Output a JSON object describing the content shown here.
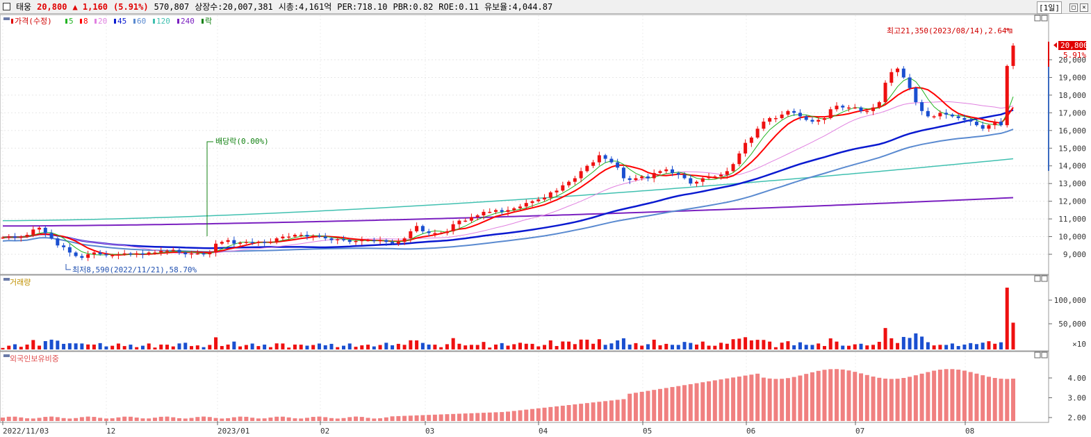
{
  "header": {
    "stock_name": "태웅",
    "price": "20,800",
    "change": "▲ 1,160",
    "change_pct": "(5.91%)",
    "volume": "570,807",
    "listed_shares": "상장수:20,007,381",
    "market_cap": "시총:4,161억",
    "per": "PER:718.10",
    "pbr": "PBR:0.82",
    "roe": "ROE:0.11",
    "retention": "유보율:4,044.87",
    "period": "[1일]"
  },
  "price_panel": {
    "legend_price": "가격(수정)",
    "legend_ma": [
      {
        "label": "5",
        "color": "#22b322"
      },
      {
        "label": "8",
        "color": "#ff0000"
      },
      {
        "label": "20",
        "color": "#e080e0"
      },
      {
        "label": "45",
        "color": "#0a1ad0"
      },
      {
        "label": "60",
        "color": "#5a8ad0"
      },
      {
        "label": "120",
        "color": "#40c0b0"
      },
      {
        "label": "240",
        "color": "#7a20c0"
      }
    ],
    "legend_extra": "락",
    "y_ticks": [
      "20,000",
      "19,000",
      "18,000",
      "17,000",
      "16,000",
      "15,000",
      "14,000",
      "13,000",
      "12,000",
      "11,000",
      "10,000",
      "9,000"
    ],
    "current_price_tag": "20,800",
    "current_pct_tag": "5.91%",
    "high_annotation": "최고21,350(2023/08/14),2.64%",
    "low_annotation": "최저8,590(2022/11/21),58.70%",
    "dividend_annotation": "배당락(0.00%)"
  },
  "volume_panel": {
    "title": "거래량",
    "y_ticks": [
      "100,000",
      "50,000"
    ],
    "unit": "×10"
  },
  "foreign_panel": {
    "title": "외국인보유비중",
    "y_ticks": [
      "4.00",
      "3.00",
      "2.00"
    ]
  },
  "x_axis": {
    "labels": [
      "2022/11/03",
      "12",
      "2023/01",
      "02",
      "03",
      "04",
      "05",
      "06",
      "07",
      "08"
    ]
  },
  "chart_data": {
    "type": "candlestick",
    "x_range": [
      "2022-11-03",
      "2023-08-16"
    ],
    "y_range": [
      8300,
      21600
    ],
    "close_series": [
      9950,
      10000,
      9950,
      10000,
      10100,
      10400,
      10500,
      10200,
      9900,
      9500,
      9400,
      9100,
      8900,
      8800,
      9000,
      9100,
      9000,
      8950,
      8950,
      9000,
      9050,
      9000,
      9050,
      9000,
      9100,
      9100,
      9200,
      9200,
      9250,
      9100,
      9000,
      9050,
      9050,
      9000,
      9100,
      9600,
      9700,
      9800,
      9600,
      9650,
      9700,
      9650,
      9700,
      9650,
      9700,
      9900,
      10000,
      10000,
      10100,
      10100,
      10000,
      10050,
      10000,
      9900,
      9800,
      9850,
      9800,
      9700,
      9750,
      9800,
      9800,
      9750,
      9800,
      9700,
      9600,
      9700,
      9900,
      10300,
      10600,
      10300,
      10200,
      10200,
      10200,
      10300,
      10700,
      10900,
      10900,
      11100,
      11200,
      11400,
      11400,
      11500,
      11400,
      11500,
      11600,
      11700,
      11900,
      12000,
      12100,
      12200,
      12500,
      12600,
      12900,
      13100,
      13300,
      13700,
      14000,
      14200,
      14600,
      14400,
      14200,
      13900,
      13300,
      13200,
      13300,
      13400,
      13300,
      13600,
      13700,
      13800,
      13600,
      13500,
      13300,
      13000,
      13100,
      13300,
      13400,
      13400,
      13500,
      13700,
      14100,
      14700,
      15300,
      15600,
      16100,
      16500,
      16700,
      16700,
      16900,
      17100,
      17000,
      16800,
      16600,
      16500,
      16600,
      16700,
      17200,
      17400,
      17300,
      17300,
      17300,
      17100,
      17100,
      17300,
      17600,
      18700,
      19300,
      19500,
      19000,
      18400,
      17600,
      17100,
      16800,
      16800,
      17000,
      16900,
      16800,
      16700,
      16600,
      16500,
      16300,
      16100,
      16300,
      16500,
      16300,
      19650,
      20800
    ],
    "moving_averages": {
      "5": "short-term, follows price",
      "8": "short-term",
      "20": "medium",
      "45": "from ~10,900 to ~17,100",
      "60": "from ~11,100 to ~16,300",
      "120": "from ~10,900 to ~14,300",
      "240": "from ~10,600 to ~12,200"
    },
    "volume_peak": 120000,
    "foreign_ratio_range": [
      1.9,
      4.6
    ]
  }
}
